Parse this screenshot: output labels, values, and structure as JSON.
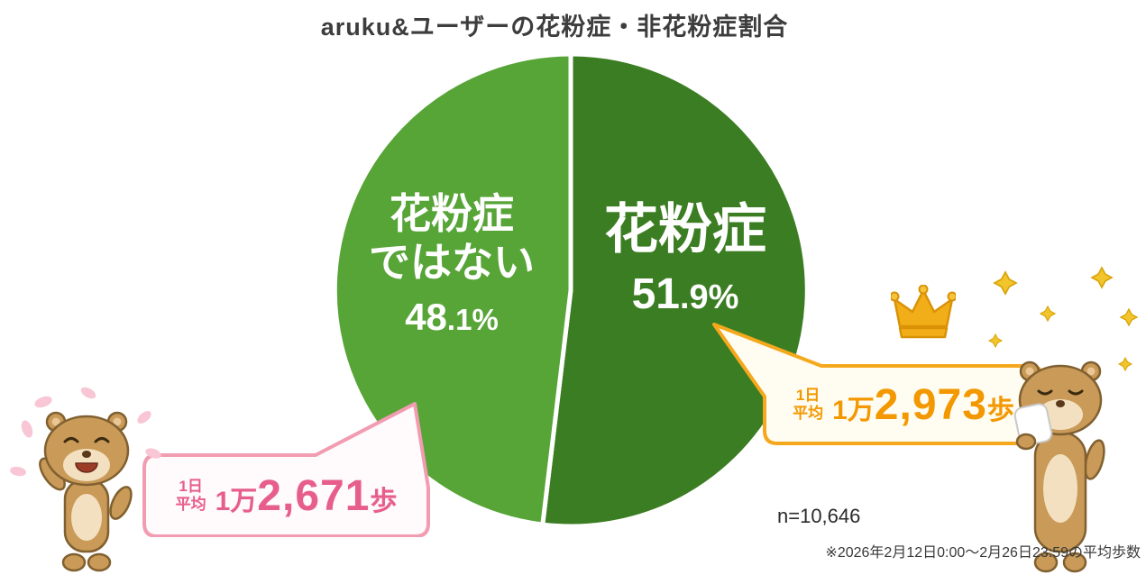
{
  "title": "aruku&ユーザーの花粉症・非花粉症割合",
  "chart_data": {
    "type": "pie",
    "title": "aruku&ユーザーの花粉症・非花粉症割合",
    "unit": "%",
    "slices": [
      {
        "label": "花粉症",
        "value": 51.9,
        "color": "#3b7d22"
      },
      {
        "label": "花粉症ではない",
        "value": 48.1,
        "color": "#57a437"
      }
    ],
    "start_angle": "top",
    "direction": "clockwise",
    "divider_color": "#ffffff",
    "legend": "none",
    "annotations": [
      {
        "for": "花粉症",
        "text": "1日平均 1万2,973歩"
      },
      {
        "for": "花粉症ではない",
        "text": "1日平均 1万2,671歩"
      }
    ],
    "sample_size": 10646
  },
  "pie_labels": {
    "right": {
      "name": "花粉症",
      "pct_main": "51",
      "pct_rest": ".9%"
    },
    "left": {
      "name_line1": "花粉症",
      "name_line2": "ではない",
      "pct_main": "48",
      "pct_rest": ".1%"
    }
  },
  "callouts": {
    "right": {
      "avg_line1": "1日",
      "avg_line2": "平均",
      "man": "1万",
      "steps": "2,973",
      "unit": "歩",
      "accent": "#f39800",
      "border": "#f5a81c",
      "bg": "#fffdf2"
    },
    "left": {
      "avg_line1": "1日",
      "avg_line2": "平均",
      "man": "1万",
      "steps": "2,671",
      "unit": "歩",
      "accent": "#e75e8c",
      "border": "#f29cb2",
      "bg": "#fffafb"
    }
  },
  "icons": {
    "crown": "crown-icon",
    "pollen": "pollen-icon",
    "petal": "petal-icon",
    "mascot_left": "aruku-mascot-waving",
    "mascot_right": "aruku-mascot-sneezing"
  },
  "footer": {
    "sample_size": "n=10,646",
    "note": "※2026年2月12日0:00〜2月26日23:59の平均歩数"
  }
}
